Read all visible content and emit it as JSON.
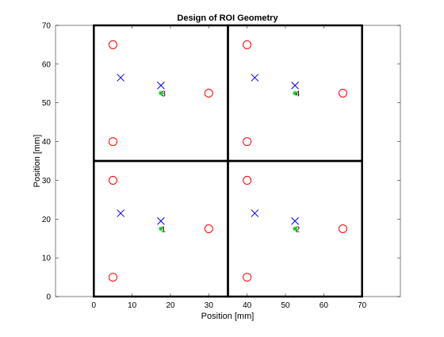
{
  "chart_data": {
    "type": "scatter",
    "title": "Design of ROI Geometry",
    "xlabel": "Position [mm]",
    "ylabel": "Position [mm]",
    "xlim": [
      -10,
      80
    ],
    "ylim": [
      0,
      70
    ],
    "xticks": [
      "0",
      "10",
      "20",
      "30",
      "40",
      "50",
      "60",
      "70"
    ],
    "yticks": [
      "0",
      "10",
      "20",
      "30",
      "40",
      "50",
      "60",
      "70"
    ],
    "grid": false,
    "legend": "none",
    "roi_boxes": [
      {
        "x": [
          0,
          35
        ],
        "y": [
          0,
          35
        ]
      },
      {
        "x": [
          35,
          70
        ],
        "y": [
          0,
          35
        ]
      },
      {
        "x": [
          0,
          35
        ],
        "y": [
          35,
          70
        ]
      },
      {
        "x": [
          35,
          70
        ],
        "y": [
          35,
          70
        ]
      }
    ],
    "series": [
      {
        "marker": "circle",
        "color": "#ff0000",
        "points": [
          [
            5,
            5
          ],
          [
            5,
            30
          ],
          [
            30,
            17.5
          ],
          [
            40,
            5
          ],
          [
            40,
            30
          ],
          [
            65,
            17.5
          ],
          [
            5,
            40
          ],
          [
            5,
            65
          ],
          [
            30,
            52.5
          ],
          [
            40,
            40
          ],
          [
            40,
            65
          ],
          [
            65,
            52.5
          ]
        ]
      },
      {
        "marker": "x",
        "color": "#0000ff",
        "points": [
          [
            7,
            21.5
          ],
          [
            17.5,
            19.5
          ],
          [
            42,
            21.5
          ],
          [
            52.5,
            19.5
          ],
          [
            7,
            56.5
          ],
          [
            17.5,
            54.5
          ],
          [
            42,
            56.5
          ],
          [
            52.5,
            54.5
          ]
        ]
      },
      {
        "marker": "asterisk",
        "color": "#00cc00",
        "points": [
          [
            17.5,
            17.5
          ],
          [
            52.5,
            17.5
          ],
          [
            17.5,
            52.5
          ],
          [
            52.5,
            52.5
          ]
        ]
      }
    ],
    "annotations": [
      {
        "text": "1",
        "x": 17.5,
        "y": 17.5
      },
      {
        "text": "2",
        "x": 52.5,
        "y": 17.5
      },
      {
        "text": "3",
        "x": 17.5,
        "y": 52.5
      },
      {
        "text": "4",
        "x": 52.5,
        "y": 52.5
      }
    ]
  }
}
